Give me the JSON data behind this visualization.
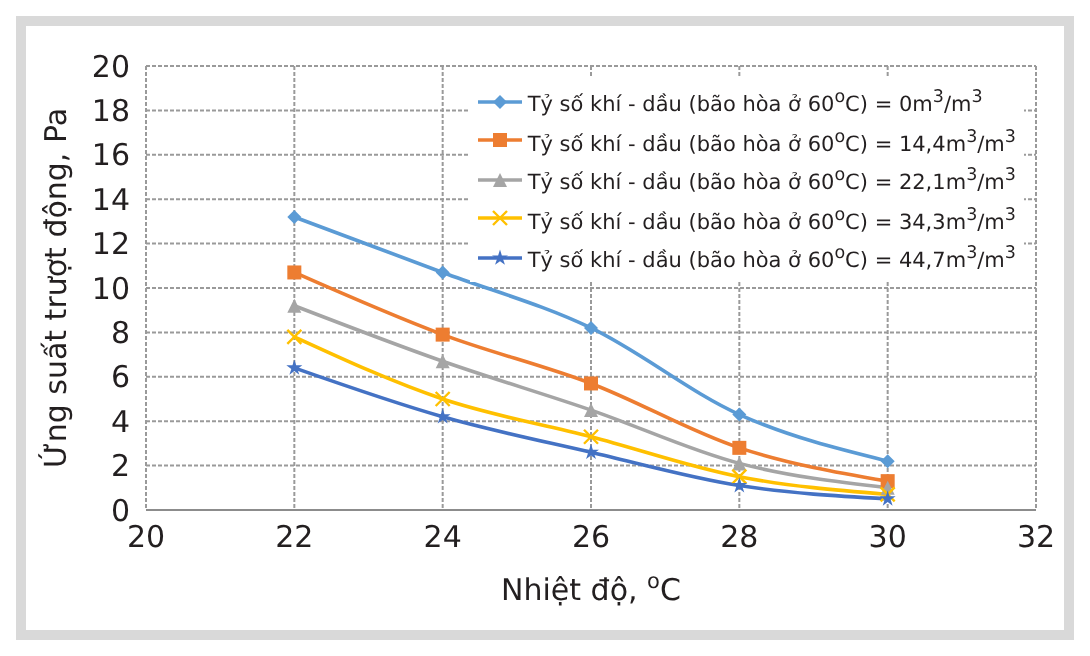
{
  "chart_data": {
    "type": "line",
    "xlabel": "Nhiệt độ, $^{o}$C",
    "ylabel": "Ứng suất trượt động, Pa",
    "x": [
      22,
      24,
      26,
      28,
      30
    ],
    "xlim": [
      20,
      32
    ],
    "xticks": [
      20,
      22,
      24,
      26,
      28,
      30,
      32
    ],
    "ylim": [
      0,
      20
    ],
    "yticks": [
      0,
      2,
      4,
      6,
      8,
      10,
      12,
      14,
      16,
      18,
      20
    ],
    "grid": true,
    "legend": "top right",
    "series": [
      {
        "name": "Tỷ số khí - dầu (bão hòa ở 60$^{o}$C) = 0m$^{3}$/m$^{3}$",
        "color": "#5b9bd5",
        "marker": "diamond",
        "values": [
          13.2,
          10.7,
          8.2,
          4.3,
          2.2
        ]
      },
      {
        "name": "Tỷ số khí - dầu (bão hòa ở 60$^{o}$C) = 14,4m$^{3}$/m$^{3}$",
        "color": "#ed7d31",
        "marker": "square",
        "values": [
          10.7,
          7.9,
          5.7,
          2.8,
          1.3
        ]
      },
      {
        "name": "Tỷ số khí - dầu (bão hòa ở 60$^{o}$C) = 22,1m$^{3}$/m$^{3}$",
        "color": "#a5a5a5",
        "marker": "triangle",
        "values": [
          9.2,
          6.7,
          4.5,
          2.1,
          1.0
        ]
      },
      {
        "name": "Tỷ số khí - dầu (bão hòa ở 60$^{o}$C) = 34,3m$^{3}$/m$^{3}$",
        "color": "#ffc000",
        "marker": "cross",
        "values": [
          7.8,
          5.0,
          3.3,
          1.5,
          0.7
        ]
      },
      {
        "name": "Tỷ số khí - dầu (bão hòa ở 60$^{o}$C) = 44,7m$^{3}$/m$^{3}$",
        "color": "#4472c4",
        "marker": "star",
        "values": [
          6.4,
          4.2,
          2.6,
          1.1,
          0.5
        ]
      }
    ]
  }
}
